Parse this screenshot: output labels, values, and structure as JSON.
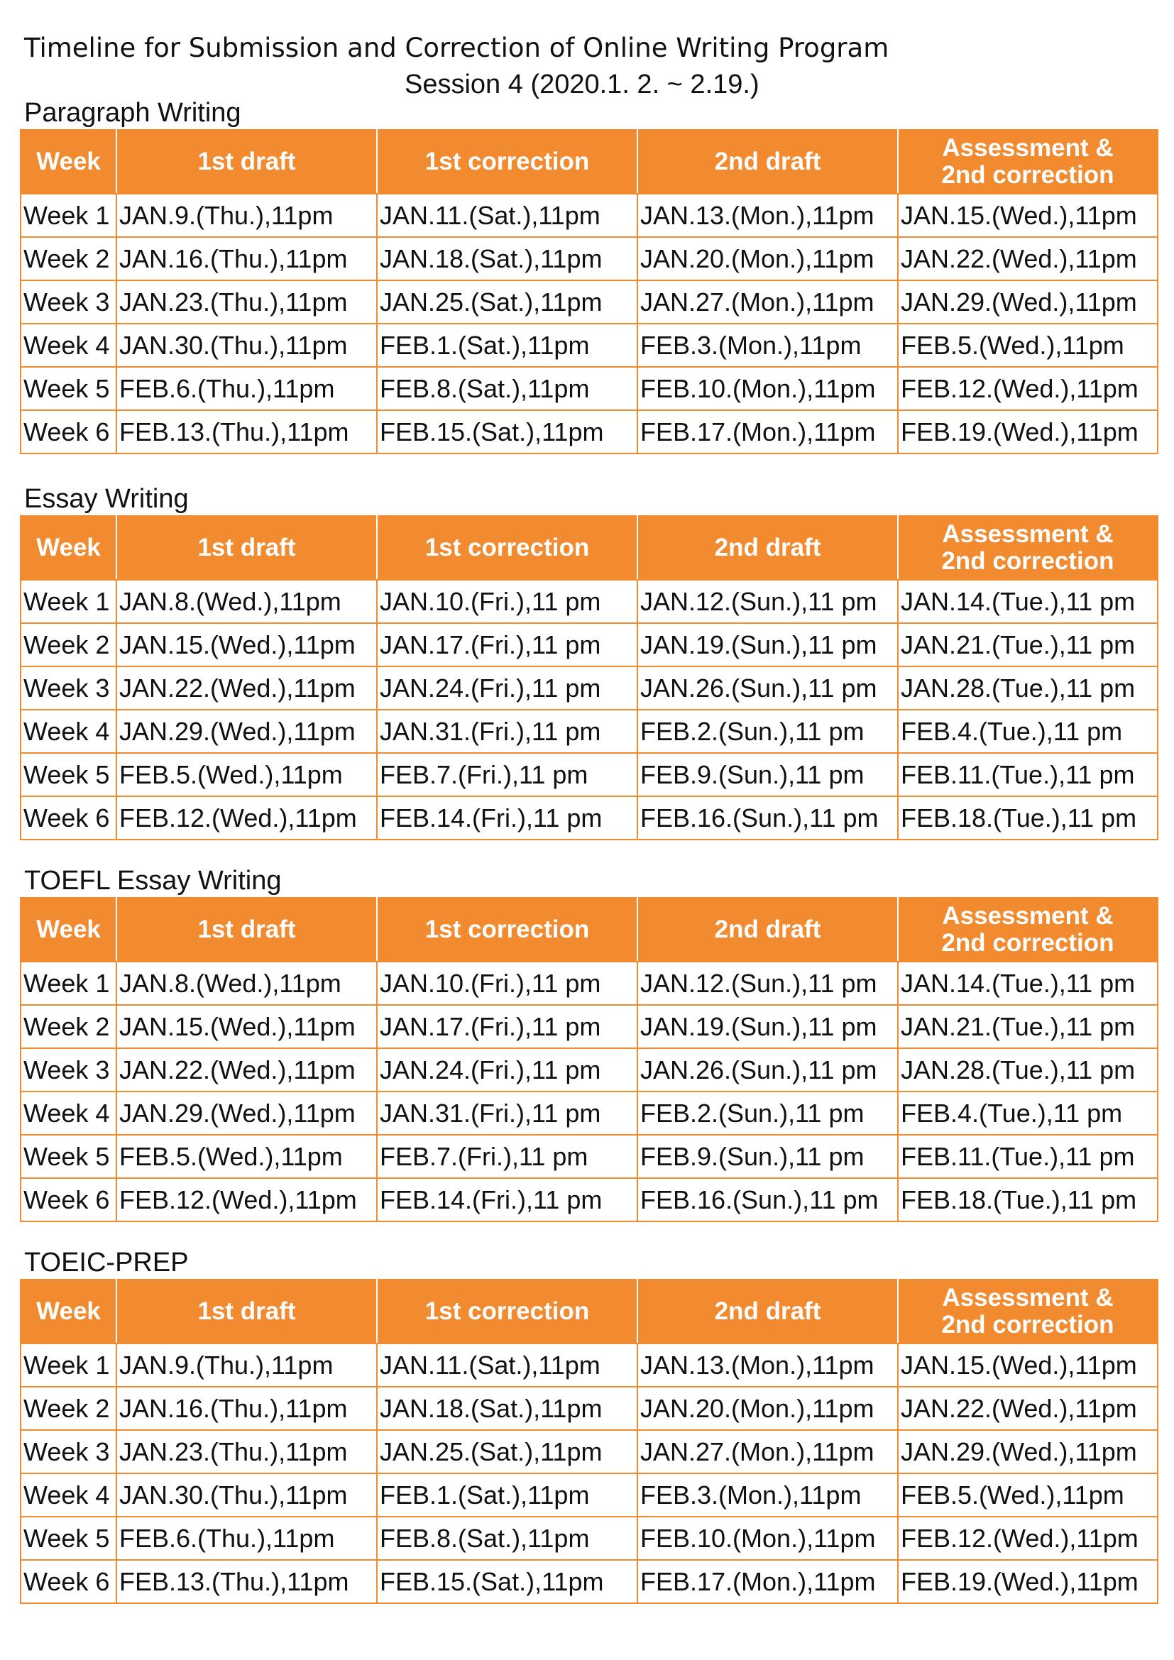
{
  "document": {
    "title": "Timeline for Submission and Correction of Online Writing Program",
    "subtitle": "Session 4 (2020.1. 2. ~ 2.19.)"
  },
  "table_headers": {
    "week": "Week",
    "first_draft": "1st draft",
    "first_correction": "1st correction",
    "second_draft": "2nd draft",
    "assessment_line1": "Assessment &",
    "assessment_line2": "2nd correction"
  },
  "sections": [
    {
      "heading": "Paragraph Writing",
      "rows": [
        [
          "Week 1",
          "JAN.9.(Thu.),11pm",
          "JAN.11.(Sat.),11pm",
          "JAN.13.(Mon.),11pm",
          "JAN.15.(Wed.),11pm"
        ],
        [
          "Week 2",
          "JAN.16.(Thu.),11pm",
          "JAN.18.(Sat.),11pm",
          "JAN.20.(Mon.),11pm",
          "JAN.22.(Wed.),11pm"
        ],
        [
          "Week 3",
          "JAN.23.(Thu.),11pm",
          "JAN.25.(Sat.),11pm",
          "JAN.27.(Mon.),11pm",
          "JAN.29.(Wed.),11pm"
        ],
        [
          "Week 4",
          "JAN.30.(Thu.),11pm",
          "FEB.1.(Sat.),11pm",
          "FEB.3.(Mon.),11pm",
          "FEB.5.(Wed.),11pm"
        ],
        [
          "Week 5",
          "FEB.6.(Thu.),11pm",
          "FEB.8.(Sat.),11pm",
          "FEB.10.(Mon.),11pm",
          "FEB.12.(Wed.),11pm"
        ],
        [
          "Week 6",
          "FEB.13.(Thu.),11pm",
          "FEB.15.(Sat.),11pm",
          "FEB.17.(Mon.),11pm",
          "FEB.19.(Wed.),11pm"
        ]
      ]
    },
    {
      "heading": "Essay Writing",
      "rows": [
        [
          "Week 1",
          "JAN.8.(Wed.),11pm",
          "JAN.10.(Fri.),11 pm",
          "JAN.12.(Sun.),11 pm",
          "JAN.14.(Tue.),11 pm"
        ],
        [
          "Week 2",
          "JAN.15.(Wed.),11pm",
          "JAN.17.(Fri.),11 pm",
          "JAN.19.(Sun.),11 pm",
          "JAN.21.(Tue.),11 pm"
        ],
        [
          "Week 3",
          "JAN.22.(Wed.),11pm",
          "JAN.24.(Fri.),11 pm",
          "JAN.26.(Sun.),11 pm",
          "JAN.28.(Tue.),11 pm"
        ],
        [
          "Week 4",
          "JAN.29.(Wed.),11pm",
          "JAN.31.(Fri.),11 pm",
          "FEB.2.(Sun.),11 pm",
          "FEB.4.(Tue.),11 pm"
        ],
        [
          "Week 5",
          "FEB.5.(Wed.),11pm",
          "FEB.7.(Fri.),11 pm",
          "FEB.9.(Sun.),11 pm",
          "FEB.11.(Tue.),11 pm"
        ],
        [
          "Week 6",
          "FEB.12.(Wed.),11pm",
          "FEB.14.(Fri.),11 pm",
          "FEB.16.(Sun.),11 pm",
          "FEB.18.(Tue.),11 pm"
        ]
      ]
    },
    {
      "heading": "TOEFL Essay Writing",
      "rows": [
        [
          "Week 1",
          "JAN.8.(Wed.),11pm",
          "JAN.10.(Fri.),11 pm",
          "JAN.12.(Sun.),11 pm",
          "JAN.14.(Tue.),11 pm"
        ],
        [
          "Week 2",
          "JAN.15.(Wed.),11pm",
          "JAN.17.(Fri.),11 pm",
          "JAN.19.(Sun.),11 pm",
          "JAN.21.(Tue.),11 pm"
        ],
        [
          "Week 3",
          "JAN.22.(Wed.),11pm",
          "JAN.24.(Fri.),11 pm",
          "JAN.26.(Sun.),11 pm",
          "JAN.28.(Tue.),11 pm"
        ],
        [
          "Week 4",
          "JAN.29.(Wed.),11pm",
          "JAN.31.(Fri.),11 pm",
          "FEB.2.(Sun.),11 pm",
          "FEB.4.(Tue.),11 pm"
        ],
        [
          "Week 5",
          "FEB.5.(Wed.),11pm",
          "FEB.7.(Fri.),11 pm",
          "FEB.9.(Sun.),11 pm",
          "FEB.11.(Tue.),11 pm"
        ],
        [
          "Week 6",
          "FEB.12.(Wed.),11pm",
          "FEB.14.(Fri.),11 pm",
          "FEB.16.(Sun.),11 pm",
          "FEB.18.(Tue.),11 pm"
        ]
      ]
    },
    {
      "heading": "TOEIC-PREP",
      "rows": [
        [
          "Week 1",
          "JAN.9.(Thu.),11pm",
          "JAN.11.(Sat.),11pm",
          "JAN.13.(Mon.),11pm",
          "JAN.15.(Wed.),11pm"
        ],
        [
          "Week 2",
          "JAN.16.(Thu.),11pm",
          "JAN.18.(Sat.),11pm",
          "JAN.20.(Mon.),11pm",
          "JAN.22.(Wed.),11pm"
        ],
        [
          "Week 3",
          "JAN.23.(Thu.),11pm",
          "JAN.25.(Sat.),11pm",
          "JAN.27.(Mon.),11pm",
          "JAN.29.(Wed.),11pm"
        ],
        [
          "Week 4",
          "JAN.30.(Thu.),11pm",
          "FEB.1.(Sat.),11pm",
          "FEB.3.(Mon.),11pm",
          "FEB.5.(Wed.),11pm"
        ],
        [
          "Week 5",
          "FEB.6.(Thu.),11pm",
          "FEB.8.(Sat.),11pm",
          "FEB.10.(Mon.),11pm",
          "FEB.12.(Wed.),11pm"
        ],
        [
          "Week 6",
          "FEB.13.(Thu.),11pm",
          "FEB.15.(Sat.),11pm",
          "FEB.17.(Mon.),11pm",
          "FEB.19.(Wed.),11pm"
        ]
      ]
    }
  ],
  "colors": {
    "header_background": "#f28b30",
    "header_text": "#ffffff",
    "border": "#f28b30"
  }
}
